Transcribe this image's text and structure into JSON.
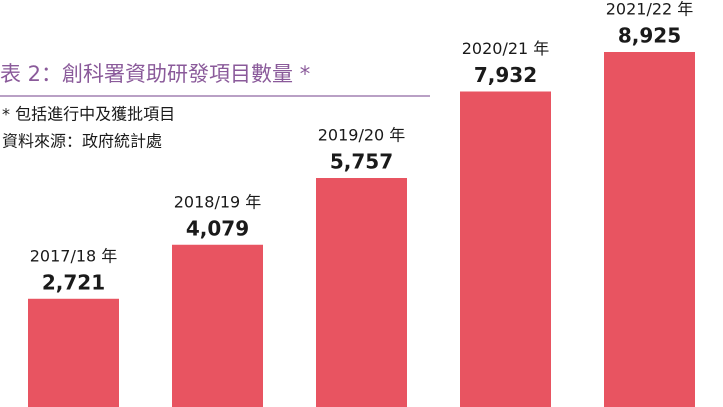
{
  "chart_data": {
    "type": "bar",
    "title": "表 2：創科署資助研發項目數量 *",
    "notes": [
      "* 包括進行中及獲批項目",
      "資料來源：政府統計處"
    ],
    "categories": [
      "2017/18 年",
      "2018/19 年",
      "2019/20 年",
      "2020/21 年",
      "2021/22 年"
    ],
    "values": [
      2721,
      4079,
      5757,
      7932,
      8925
    ],
    "value_labels": [
      "2,721",
      "4,079",
      "5,757",
      "7,932",
      "8,925"
    ],
    "color": "#e85461"
  }
}
